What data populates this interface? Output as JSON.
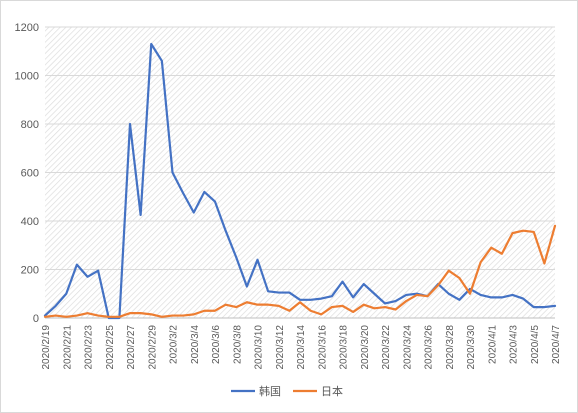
{
  "chart_data": {
    "type": "line",
    "title": "",
    "xlabel": "",
    "ylabel": "",
    "ylim": [
      0,
      1200
    ],
    "yticks": [
      0,
      200,
      400,
      600,
      800,
      1000,
      1200
    ],
    "x": [
      "2020/2/19",
      "2020/2/20",
      "2020/2/21",
      "2020/2/22",
      "2020/2/23",
      "2020/2/24",
      "2020/2/25",
      "2020/2/26",
      "2020/2/27",
      "2020/2/28",
      "2020/2/29",
      "2020/3/1",
      "2020/3/2",
      "2020/3/3",
      "2020/3/4",
      "2020/3/5",
      "2020/3/6",
      "2020/3/7",
      "2020/3/8",
      "2020/3/9",
      "2020/3/10",
      "2020/3/11",
      "2020/3/12",
      "2020/3/13",
      "2020/3/14",
      "2020/3/15",
      "2020/3/16",
      "2020/3/17",
      "2020/3/18",
      "2020/3/19",
      "2020/3/20",
      "2020/3/21",
      "2020/3/22",
      "2020/3/23",
      "2020/3/24",
      "2020/3/25",
      "2020/3/26",
      "2020/3/27",
      "2020/3/28",
      "2020/3/29",
      "2020/3/30",
      "2020/3/31",
      "2020/4/1",
      "2020/4/2",
      "2020/4/3",
      "2020/4/4",
      "2020/4/5",
      "2020/4/6",
      "2020/4/7"
    ],
    "x_tick_labels": [
      "2020/2/19",
      "2020/2/21",
      "2020/2/23",
      "2020/2/25",
      "2020/2/27",
      "2020/2/29",
      "2020/3/2",
      "2020/3/4",
      "2020/3/6",
      "2020/3/8",
      "2020/3/10",
      "2020/3/12",
      "2020/3/14",
      "2020/3/16",
      "2020/3/18",
      "2020/3/20",
      "2020/3/22",
      "2020/3/24",
      "2020/3/26",
      "2020/3/28",
      "2020/3/30",
      "2020/4/1",
      "2020/4/3",
      "2020/4/5",
      "2020/4/7"
    ],
    "series": [
      {
        "name": "韩国",
        "color": "#4472c4",
        "values": [
          10,
          50,
          100,
          220,
          170,
          195,
          0,
          0,
          800,
          425,
          1130,
          1060,
          600,
          515,
          435,
          520,
          480,
          360,
          250,
          130,
          240,
          110,
          105,
          105,
          75,
          75,
          80,
          90,
          150,
          85,
          140,
          100,
          60,
          70,
          95,
          100,
          90,
          140,
          100,
          75,
          120,
          95,
          85,
          85,
          95,
          80,
          45,
          45,
          50
        ]
      },
      {
        "name": "日本",
        "color": "#ed7d31",
        "values": [
          5,
          10,
          5,
          10,
          20,
          10,
          5,
          5,
          20,
          20,
          15,
          5,
          10,
          10,
          15,
          30,
          30,
          55,
          45,
          65,
          55,
          55,
          50,
          30,
          65,
          30,
          15,
          45,
          50,
          25,
          55,
          40,
          45,
          35,
          70,
          95,
          90,
          135,
          195,
          165,
          100,
          230,
          290,
          265,
          350,
          360,
          355,
          225,
          380
        ]
      }
    ],
    "grid": true,
    "legend_position": "bottom"
  }
}
